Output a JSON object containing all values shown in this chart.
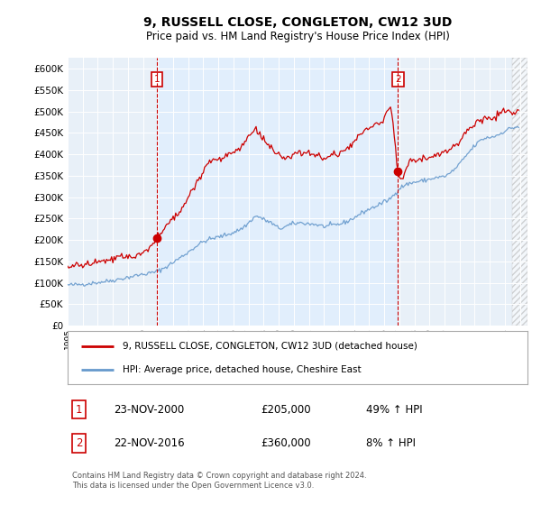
{
  "title": "9, RUSSELL CLOSE, CONGLETON, CW12 3UD",
  "subtitle": "Price paid vs. HM Land Registry's House Price Index (HPI)",
  "legend_line1": "9, RUSSELL CLOSE, CONGLETON, CW12 3UD (detached house)",
  "legend_line2": "HPI: Average price, detached house, Cheshire East",
  "red_color": "#cc0000",
  "blue_color": "#6699cc",
  "blue_fill": "#ddeeff",
  "annotation1_label": "1",
  "annotation1_date": "23-NOV-2000",
  "annotation1_price": "£205,000",
  "annotation1_hpi": "49% ↑ HPI",
  "annotation2_label": "2",
  "annotation2_date": "22-NOV-2016",
  "annotation2_price": "£360,000",
  "annotation2_hpi": "8% ↑ HPI",
  "footnote": "Contains HM Land Registry data © Crown copyright and database right 2024.\nThis data is licensed under the Open Government Licence v3.0.",
  "ylim": [
    0,
    625000
  ],
  "yticks": [
    0,
    50000,
    100000,
    150000,
    200000,
    250000,
    300000,
    350000,
    400000,
    450000,
    500000,
    550000,
    600000
  ],
  "sale1_x": 2000.917,
  "sale1_y": 205000,
  "sale2_x": 2016.917,
  "sale2_y": 360000,
  "vline1_x": 2000.917,
  "vline2_x": 2016.917,
  "xmin": 1995.0,
  "xmax": 2025.5
}
